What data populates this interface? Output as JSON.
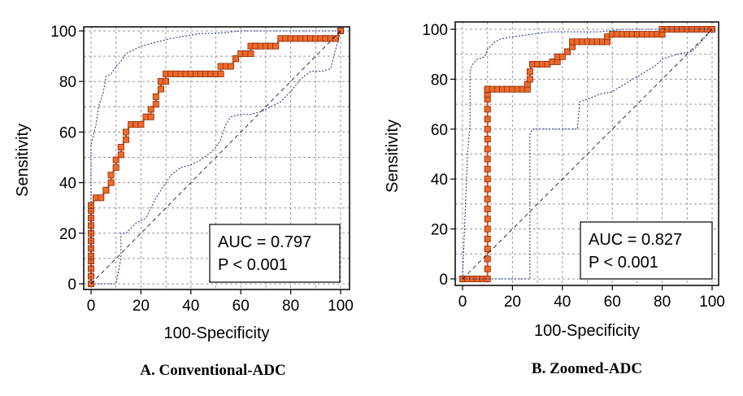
{
  "chart_data": [
    {
      "type": "line",
      "panel": "A",
      "caption": "A. Conventional-ADC",
      "xlabel": "100-Specificity",
      "ylabel": "Sensitivity",
      "xlim": [
        0,
        100
      ],
      "ylim": [
        0,
        100
      ],
      "xticks": [
        "0",
        "20",
        "40",
        "60",
        "80",
        "100"
      ],
      "yticks": [
        "0",
        "20",
        "40",
        "60",
        "80",
        "100"
      ],
      "grid": true,
      "annotation": {
        "auc": "AUC = 0.797",
        "p": "P < 0.001",
        "placement": "bottom-right"
      },
      "series": [
        {
          "name": "ROC curve",
          "x": [
            0,
            0,
            0,
            0,
            0,
            0,
            0,
            0,
            0,
            0,
            0,
            0,
            2,
            4,
            6,
            6,
            8,
            8,
            10,
            10,
            12,
            12,
            14,
            14,
            16,
            18,
            20,
            22,
            24,
            24,
            26,
            26,
            28,
            28,
            28,
            30,
            30,
            32,
            34,
            36,
            38,
            40,
            42,
            44,
            46,
            48,
            50,
            52,
            52,
            54,
            56,
            58,
            58,
            60,
            62,
            64,
            64,
            66,
            66,
            68,
            70,
            72,
            74,
            76,
            78,
            80,
            82,
            84,
            86,
            88,
            90,
            92,
            94,
            94,
            96,
            98,
            100,
            100
          ],
          "y": [
            0,
            3,
            6,
            9,
            11,
            14,
            17,
            20,
            23,
            26,
            29,
            31,
            34,
            34,
            37,
            37,
            40,
            43,
            46,
            49,
            51,
            54,
            57,
            60,
            63,
            63,
            63,
            66,
            66,
            69,
            71,
            74,
            77,
            80,
            80,
            80,
            83,
            83,
            83,
            83,
            83,
            83,
            83,
            83,
            83,
            83,
            83,
            83,
            86,
            86,
            86,
            89,
            89,
            91,
            91,
            91,
            94,
            94,
            94,
            94,
            94,
            94,
            94,
            97,
            97,
            97,
            97,
            97,
            97,
            97,
            97,
            97,
            97,
            97,
            97,
            97,
            100,
            100
          ]
        },
        {
          "name": "95% CI upper",
          "x": [
            0,
            0,
            2,
            3,
            5,
            6,
            8,
            10,
            12,
            14,
            16,
            18,
            20,
            24,
            28,
            32,
            38,
            44,
            50,
            60,
            70,
            80,
            90,
            100
          ],
          "y": [
            0,
            55,
            63,
            70,
            76,
            82,
            83,
            86,
            88,
            91,
            92,
            93,
            94,
            95,
            96,
            97,
            98,
            99,
            99,
            100,
            100,
            100,
            100,
            100
          ]
        },
        {
          "name": "95% CI lower",
          "x": [
            0,
            10,
            12,
            12,
            14,
            16,
            18,
            22,
            26,
            30,
            32,
            36,
            40,
            44,
            48,
            50,
            52,
            54,
            56,
            60,
            64,
            68,
            72,
            76,
            80,
            84,
            88,
            92,
            96,
            100
          ],
          "y": [
            0,
            0,
            10,
            20,
            20,
            22,
            24,
            26,
            34,
            40,
            43,
            46,
            47,
            49,
            52,
            54,
            57,
            63,
            66,
            67,
            67,
            68,
            70,
            72,
            76,
            81,
            84,
            84,
            85,
            100
          ]
        },
        {
          "name": "Reference line",
          "x": [
            0,
            100
          ],
          "y": [
            0,
            100
          ]
        }
      ]
    },
    {
      "type": "line",
      "panel": "B",
      "caption": "B. Zoomed-ADC",
      "xlabel": "100-Specificity",
      "ylabel": "Sensitivity",
      "xlim": [
        0,
        100
      ],
      "ylim": [
        0,
        100
      ],
      "xticks": [
        "0",
        "20",
        "40",
        "60",
        "80",
        "100"
      ],
      "yticks": [
        "0",
        "20",
        "40",
        "60",
        "80",
        "100"
      ],
      "grid": true,
      "annotation": {
        "auc": "AUC = 0.827",
        "p": "P < 0.001",
        "placement": "bottom-right"
      },
      "series": [
        {
          "name": "ROC curve",
          "x": [
            0,
            2,
            4,
            6,
            8,
            10,
            10,
            10,
            10,
            10,
            10,
            10,
            10,
            10,
            10,
            10,
            10,
            10,
            10,
            10,
            10,
            10,
            10,
            10,
            10,
            10,
            10,
            10,
            12,
            14,
            16,
            18,
            20,
            22,
            24,
            26,
            26,
            27,
            27,
            28,
            30,
            32,
            34,
            36,
            38,
            38,
            40,
            42,
            42,
            44,
            44,
            46,
            48,
            50,
            52,
            54,
            56,
            58,
            58,
            60,
            62,
            64,
            66,
            68,
            70,
            72,
            74,
            76,
            78,
            80,
            80,
            82,
            84,
            86,
            88,
            90,
            92,
            94,
            96,
            98,
            100
          ],
          "y": [
            0,
            0,
            0,
            0,
            0,
            0,
            4,
            8,
            12,
            16,
            20,
            24,
            28,
            32,
            36,
            40,
            44,
            48,
            52,
            56,
            60,
            64,
            68,
            72,
            74,
            76,
            76,
            76,
            76,
            76,
            76,
            76,
            76,
            76,
            76,
            76,
            78,
            80,
            83,
            86,
            86,
            86,
            86,
            87,
            87,
            89,
            89,
            91,
            91,
            93,
            95,
            95,
            95,
            95,
            95,
            95,
            95,
            95,
            97,
            98,
            98,
            98,
            98,
            98,
            98,
            98,
            98,
            98,
            98,
            98,
            100,
            100,
            100,
            100,
            100,
            100,
            100,
            100,
            100,
            100,
            100
          ]
        },
        {
          "name": "95% CI upper",
          "x": [
            0,
            2,
            3,
            3,
            4,
            6,
            9,
            10,
            11,
            13,
            15,
            20,
            28,
            35,
            45,
            55,
            65,
            75,
            85,
            100
          ],
          "y": [
            0,
            50,
            62,
            83,
            86,
            88,
            89,
            92,
            93,
            95,
            96,
            97,
            98,
            99,
            99,
            99,
            100,
            100,
            100,
            100
          ]
        },
        {
          "name": "95% CI lower",
          "x": [
            0,
            27,
            27,
            28,
            40,
            46,
            47,
            50,
            55,
            60,
            65,
            68,
            70,
            75,
            78,
            80,
            86,
            92,
            100
          ],
          "y": [
            0,
            0,
            58,
            60,
            60,
            60,
            71,
            72,
            74,
            75,
            78,
            80,
            81,
            84,
            86,
            88,
            90,
            91,
            100
          ]
        },
        {
          "name": "Reference line",
          "x": [
            0,
            100
          ],
          "y": [
            0,
            100
          ]
        }
      ]
    }
  ]
}
